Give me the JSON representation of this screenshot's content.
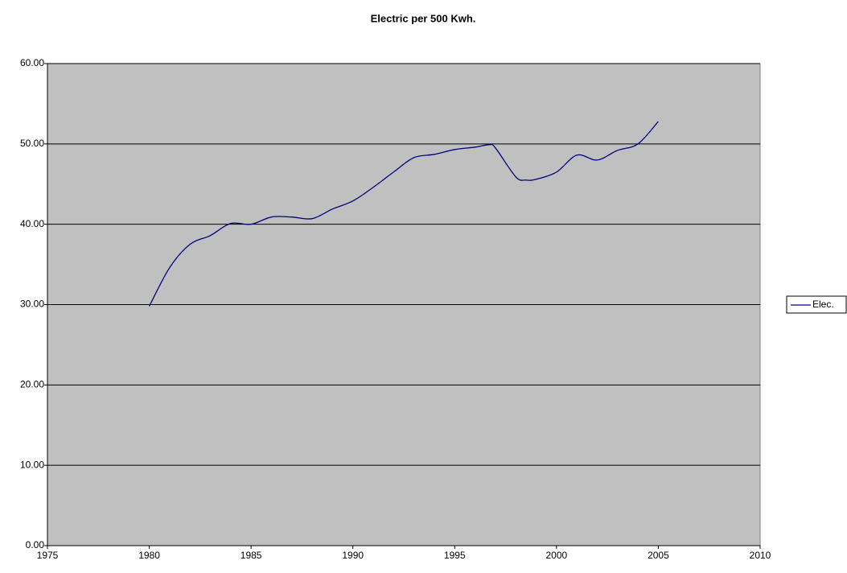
{
  "chart_data": {
    "type": "line",
    "title": "Electric per 500 Kwh.",
    "x": [
      1980,
      1981,
      1982,
      1983,
      1984,
      1985,
      1986,
      1987,
      1988,
      1989,
      1990,
      1991,
      1992,
      1993,
      1994,
      1995,
      1996,
      1996.7,
      1997,
      1998,
      1998.5,
      1999,
      2000,
      2001,
      2002,
      2003,
      2004,
      2005
    ],
    "series": [
      {
        "name": "Elec.",
        "color": "#000080",
        "values": [
          29.8,
          34.6,
          37.5,
          38.6,
          40.1,
          40.0,
          40.9,
          40.9,
          40.7,
          41.9,
          42.9,
          44.6,
          46.5,
          48.3,
          48.7,
          49.3,
          49.6,
          49.9,
          49.5,
          45.9,
          45.5,
          45.6,
          46.5,
          48.6,
          48.0,
          49.2,
          50.0,
          52.8
        ]
      }
    ],
    "xlim": [
      1975,
      2010
    ],
    "xticks": [
      1975,
      1980,
      1985,
      1990,
      1995,
      2000,
      2005,
      2010
    ],
    "ylim": [
      0,
      60
    ],
    "yticks": [
      {
        "value": 0,
        "label": "0.00"
      },
      {
        "value": 10,
        "label": "10.00"
      },
      {
        "value": 20,
        "label": "20.00"
      },
      {
        "value": 30,
        "label": "30.00"
      },
      {
        "value": 40,
        "label": "40.00"
      },
      {
        "value": 50,
        "label": "50.00"
      },
      {
        "value": 60,
        "label": "60.00"
      }
    ],
    "grid": true,
    "plot_background": "#c0c0c0",
    "legend": "right"
  }
}
